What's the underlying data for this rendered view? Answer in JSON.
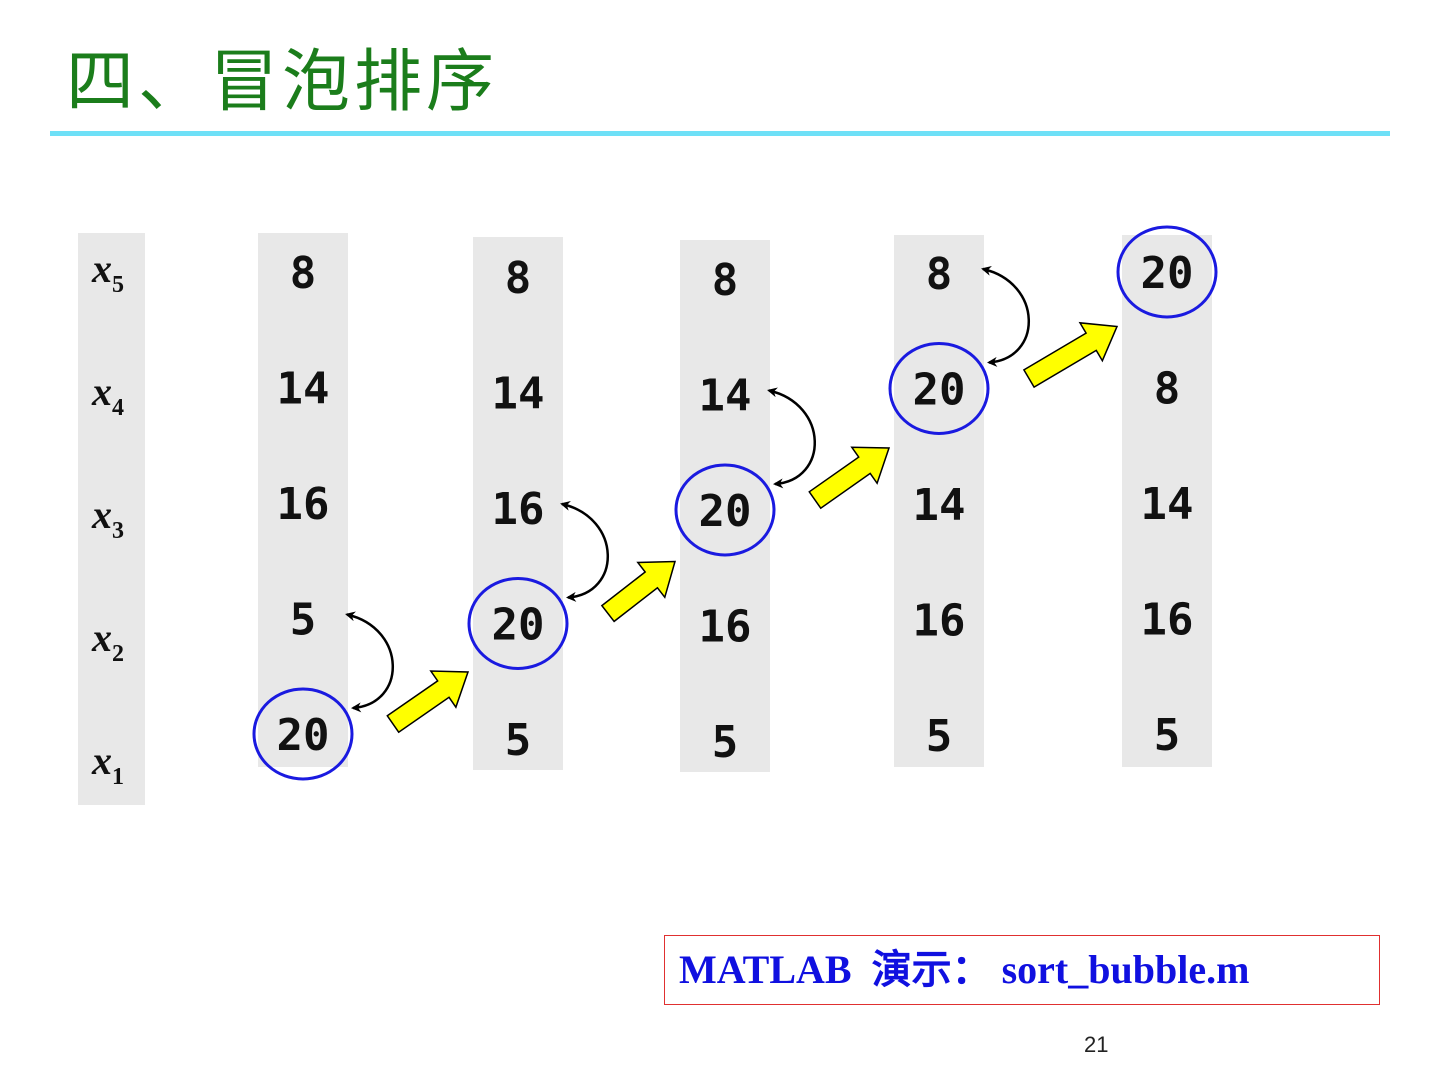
{
  "title": "四、冒泡排序",
  "labels": [
    "x5",
    "x4",
    "x3",
    "x2",
    "x1"
  ],
  "label_subscripts": [
    "5",
    "4",
    "3",
    "2",
    "1"
  ],
  "columns": [
    {
      "values": [
        "8",
        "14",
        "16",
        "5",
        "20"
      ],
      "highlighted_index": 4,
      "swap": [
        3,
        4
      ]
    },
    {
      "values": [
        "8",
        "14",
        "16",
        "20",
        "5"
      ],
      "highlighted_index": 3,
      "swap": [
        2,
        3
      ]
    },
    {
      "values": [
        "8",
        "14",
        "20",
        "16",
        "5"
      ],
      "highlighted_index": 2,
      "swap": [
        1,
        2
      ]
    },
    {
      "values": [
        "8",
        "20",
        "14",
        "16",
        "5"
      ],
      "highlighted_index": 1,
      "swap": [
        0,
        1
      ]
    },
    {
      "values": [
        "20",
        "8",
        "14",
        "16",
        "5"
      ],
      "highlighted_index": 0
    }
  ],
  "demo_text": "MATLAB  演示： sort_bubble.m",
  "page_number": "21",
  "colors": {
    "title": "#1b7d1b",
    "rule": "#6ee0f7",
    "column_bg": "#e8e8e8",
    "circle": "#1a1ae0",
    "arrow_fill": "#ffff00",
    "demo_text": "#1010e0",
    "demo_border": "#e03030"
  }
}
